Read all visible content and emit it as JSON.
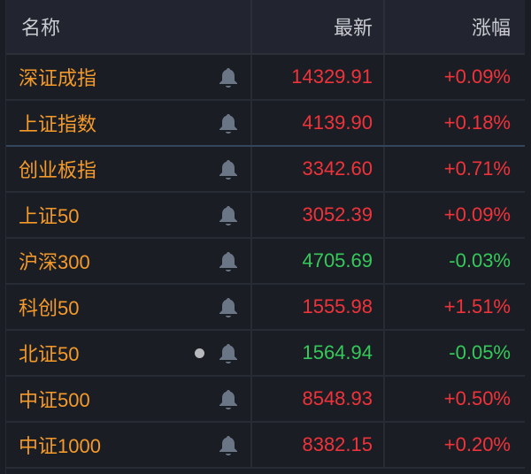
{
  "header": {
    "name": "名称",
    "latest": "最新",
    "change": "涨幅"
  },
  "colors": {
    "name": "#f39a2b",
    "up": "#f0333a",
    "down": "#35c95a",
    "bell": "#6a7585"
  },
  "rows": [
    {
      "name": "深证成指",
      "latest": "14329.91",
      "change": "+0.09%",
      "dir": "up",
      "icon": "bell-icon"
    },
    {
      "name": "上证指数",
      "latest": "4139.90",
      "change": "+0.18%",
      "dir": "up",
      "icon": "bell-icon"
    },
    {
      "name": "创业板指",
      "latest": "3342.60",
      "change": "+0.71%",
      "dir": "up",
      "icon": "bell-icon"
    },
    {
      "name": "上证50",
      "latest": "3052.39",
      "change": "+0.09%",
      "dir": "up",
      "icon": "bell-icon"
    },
    {
      "name": "沪深300",
      "latest": "4705.69",
      "change": "-0.03%",
      "dir": "down",
      "icon": "bell-icon"
    },
    {
      "name": "科创50",
      "latest": "1555.98",
      "change": "+1.51%",
      "dir": "up",
      "icon": "bell-icon"
    },
    {
      "name": "北证50",
      "latest": "1564.94",
      "change": "-0.05%",
      "dir": "down",
      "icon": "bell-icon",
      "dot": true
    },
    {
      "name": "中证500",
      "latest": "8548.93",
      "change": "+0.50%",
      "dir": "up",
      "icon": "bell-icon"
    },
    {
      "name": "中证1000",
      "latest": "8382.15",
      "change": "+0.20%",
      "dir": "up",
      "icon": "bell-icon"
    }
  ]
}
